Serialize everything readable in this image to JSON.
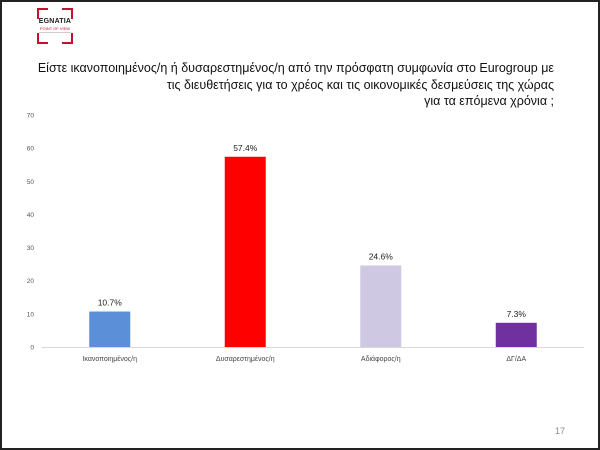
{
  "logo": {
    "name": "EGNATIA",
    "sub": "POINT OF VIEW"
  },
  "title": "Είστε ικανοποιημένος/η ή δυσαρεστημένος/η  από την πρόσφατη  συμφωνία στο Eurogroup  με\nτις διευθετήσεις για το χρέος και τις οικονομικές δεσμεύσεις της χώρας\nγια τα επόμενα χρόνια ;",
  "page_number": "17",
  "chart_data": {
    "type": "bar",
    "categories": [
      "Ικανοποιημένος/η",
      "Δυσαρεστημένος/η",
      "Αδιάφορος/η",
      "ΔΓ/ΔΑ"
    ],
    "values": [
      10.7,
      57.4,
      24.6,
      7.3
    ],
    "value_labels": [
      "10.7%",
      "57.4%",
      "24.6%",
      "7.3%"
    ],
    "colors": [
      "#5b8fd8",
      "#ff0000",
      "#cfc8e2",
      "#7030a0"
    ],
    "ylim": [
      0,
      70
    ],
    "yticks": [
      0,
      10,
      20,
      30,
      40,
      50,
      60,
      70
    ],
    "grid": false,
    "legend": "none"
  }
}
